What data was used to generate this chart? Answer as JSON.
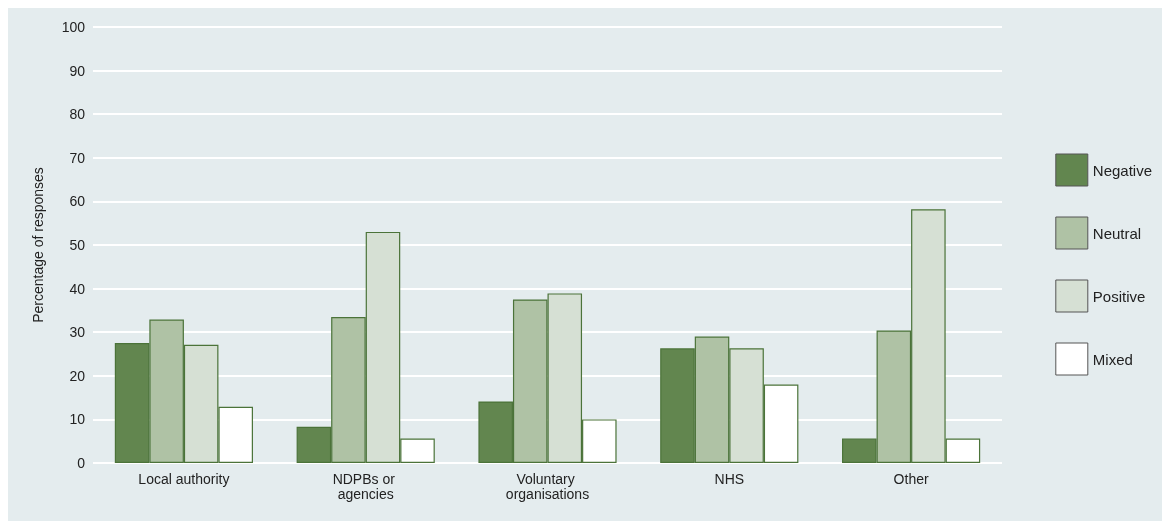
{
  "chart_data": {
    "type": "bar",
    "ylabel": "Percentage of responses",
    "categories": [
      "Local authority",
      "NDPBs or agencies",
      "Voluntary organisations",
      "NHS",
      "Other"
    ],
    "series": [
      {
        "name": "Negative",
        "color": "#62864f",
        "values": [
          27.5,
          8.3,
          14.1,
          26.3,
          5.6
        ]
      },
      {
        "name": "Neutral",
        "color": "#afc2a5",
        "values": [
          32.9,
          33.5,
          37.5,
          29.0,
          30.4
        ]
      },
      {
        "name": "Positive",
        "color": "#d6e0d4",
        "values": [
          27.1,
          53.0,
          38.9,
          26.3,
          58.2
        ]
      },
      {
        "name": "Mixed",
        "color": "#ffffff",
        "values": [
          12.9,
          5.6,
          10.0,
          18.0,
          5.6
        ]
      }
    ],
    "ylim": [
      0,
      100
    ],
    "yticks": [
      0,
      10,
      20,
      30,
      40,
      50,
      60,
      70,
      80,
      90,
      100
    ],
    "grid": "y",
    "legend": "right"
  }
}
